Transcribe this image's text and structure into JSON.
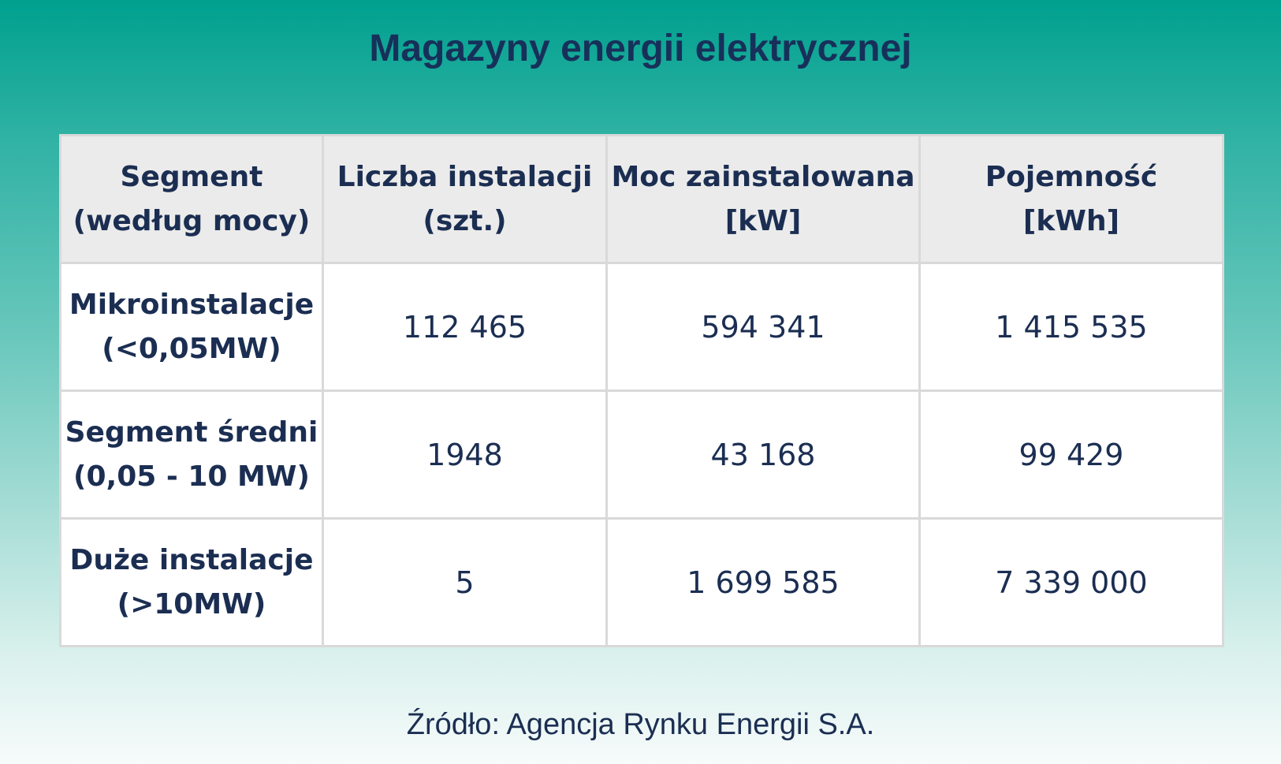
{
  "title": "Magazyny energii elektrycznej",
  "source": "Źródło: Agencja Rynku Energii S.A.",
  "colors": {
    "text": "#1b2e52",
    "header_bg": "#ebebeb",
    "background_top": "#00a08e",
    "background_bottom": "#f7fbfb"
  },
  "chart_data": {
    "type": "table",
    "title": "Magazyny energii elektrycznej",
    "columns": [
      {
        "line1": "Segment",
        "line2": "(według mocy)"
      },
      {
        "line1": "Liczba instalacji",
        "line2": "(szt.)"
      },
      {
        "line1": "Moc zainstalowana",
        "line2": "[kW]"
      },
      {
        "line1": "Pojemność",
        "line2": "[kWh]"
      }
    ],
    "rows": [
      {
        "segment": {
          "line1": "Mikroinstalacje",
          "line2": "(<0,05MW)"
        },
        "count": "112 465",
        "power": "594 341",
        "capacity": "1 415 535"
      },
      {
        "segment": {
          "line1": "Segment średni",
          "line2": "(0,05 - 10 MW)"
        },
        "count": "1948",
        "power": "43 168",
        "capacity": "99 429"
      },
      {
        "segment": {
          "line1": "Duże instalacje",
          "line2": "(>10MW)"
        },
        "count": "5",
        "power": "1 699 585",
        "capacity": "7 339 000"
      }
    ],
    "source": "Źródło: Agencja Rynku Energii S.A."
  }
}
